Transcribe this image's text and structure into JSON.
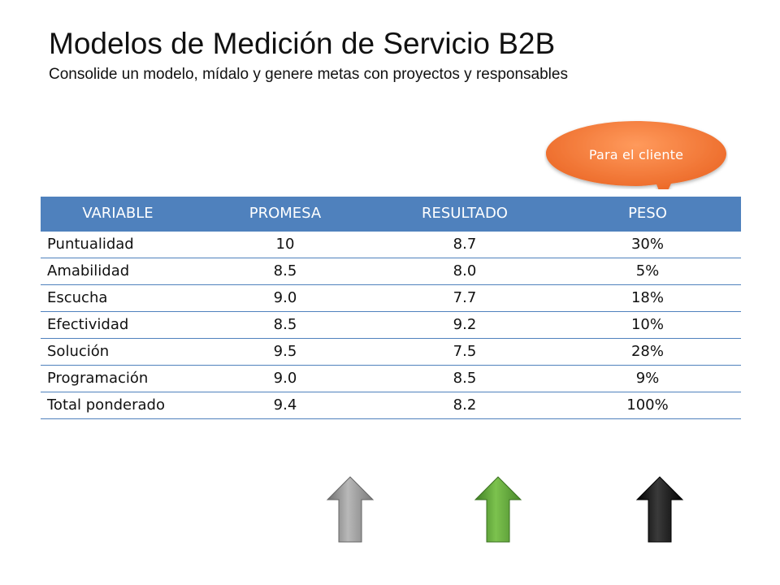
{
  "slide": {
    "title": "Modelos de Medición de Servicio B2B",
    "subtitle": "Consolide un modelo, mídalo y genere metas con proyectos y responsables"
  },
  "callout": {
    "label": "Para el cliente",
    "color": "#f07030"
  },
  "table": {
    "header_color": "#4f81bd",
    "columns": [
      "VARIABLE",
      "PROMESA",
      "RESULTADO",
      "PESO"
    ],
    "rows": [
      [
        "Puntualidad",
        "10",
        "8.7",
        "30%"
      ],
      [
        "Amabilidad",
        "8.5",
        "8.0",
        "5%"
      ],
      [
        "Escucha",
        "9.0",
        "7.7",
        "18%"
      ],
      [
        "Efectividad",
        "8.5",
        "9.2",
        "10%"
      ],
      [
        "Solución",
        "9.5",
        "7.5",
        "28%"
      ],
      [
        "Programación",
        "9.0",
        "8.5",
        "9%"
      ],
      [
        "Total ponderado",
        "9.4",
        "8.2",
        "100%"
      ]
    ]
  },
  "arrows": [
    {
      "column": "PROMESA",
      "icon": "up-arrow-icon",
      "color": "#8c8c8c"
    },
    {
      "column": "RESULTADO",
      "icon": "up-arrow-icon",
      "color": "#5ea33a"
    },
    {
      "column": "PESO",
      "icon": "up-arrow-icon",
      "color": "#111111"
    }
  ]
}
